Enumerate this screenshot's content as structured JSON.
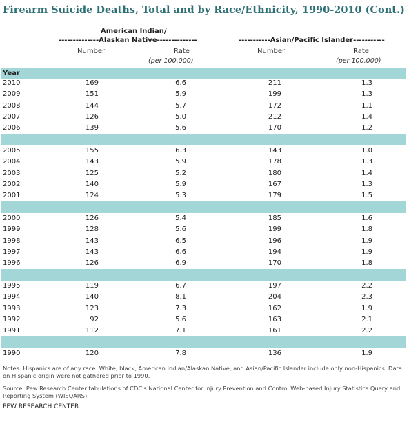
{
  "title": "Firearm Suicide Deaths, Total and by Race/Ethnicity, 1990-2010 (Cont.)",
  "groups": {
    "aian_line1": "American Indian/",
    "aian_line2": "--------------Alaskan Native--------------",
    "api_line": "-----------Asian/Pacific Islander-----------"
  },
  "columns": {
    "number": "Number",
    "rate": "Rate",
    "rate_sub": "(per 100,000)"
  },
  "year_label": "Year",
  "blocks": [
    [
      {
        "year": "2010",
        "aian_number": "169",
        "aian_rate": "6.6",
        "api_number": "211",
        "api_rate": "1.3"
      },
      {
        "year": "2009",
        "aian_number": "151",
        "aian_rate": "5.9",
        "api_number": "199",
        "api_rate": "1.3"
      },
      {
        "year": "2008",
        "aian_number": "144",
        "aian_rate": "5.7",
        "api_number": "172",
        "api_rate": "1.1"
      },
      {
        "year": "2007",
        "aian_number": "126",
        "aian_rate": "5.0",
        "api_number": "212",
        "api_rate": "1.4"
      },
      {
        "year": "2006",
        "aian_number": "139",
        "aian_rate": "5.6",
        "api_number": "170",
        "api_rate": "1.2"
      }
    ],
    [
      {
        "year": "2005",
        "aian_number": "155",
        "aian_rate": "6.3",
        "api_number": "143",
        "api_rate": "1.0"
      },
      {
        "year": "2004",
        "aian_number": "143",
        "aian_rate": "5.9",
        "api_number": "178",
        "api_rate": "1.3"
      },
      {
        "year": "2003",
        "aian_number": "125",
        "aian_rate": "5.2",
        "api_number": "180",
        "api_rate": "1.4"
      },
      {
        "year": "2002",
        "aian_number": "140",
        "aian_rate": "5.9",
        "api_number": "167",
        "api_rate": "1.3"
      },
      {
        "year": "2001",
        "aian_number": "124",
        "aian_rate": "5.3",
        "api_number": "179",
        "api_rate": "1.5"
      }
    ],
    [
      {
        "year": "2000",
        "aian_number": "126",
        "aian_rate": "5.4",
        "api_number": "185",
        "api_rate": "1.6"
      },
      {
        "year": "1999",
        "aian_number": "128",
        "aian_rate": "5.6",
        "api_number": "199",
        "api_rate": "1.8"
      },
      {
        "year": "1998",
        "aian_number": "143",
        "aian_rate": "6.5",
        "api_number": "196",
        "api_rate": "1.9"
      },
      {
        "year": "1997",
        "aian_number": "143",
        "aian_rate": "6.6",
        "api_number": "194",
        "api_rate": "1.9"
      },
      {
        "year": "1996",
        "aian_number": "126",
        "aian_rate": "6.9",
        "api_number": "170",
        "api_rate": "1.8"
      }
    ],
    [
      {
        "year": "1995",
        "aian_number": "119",
        "aian_rate": "6.7",
        "api_number": "197",
        "api_rate": "2.2"
      },
      {
        "year": "1994",
        "aian_number": "140",
        "aian_rate": "8.1",
        "api_number": "204",
        "api_rate": "2.3"
      },
      {
        "year": "1993",
        "aian_number": "123",
        "aian_rate": "7.3",
        "api_number": "162",
        "api_rate": "1.9"
      },
      {
        "year": "1992",
        "aian_number": "92",
        "aian_rate": "5.6",
        "api_number": "163",
        "api_rate": "2.1"
      },
      {
        "year": "1991",
        "aian_number": "112",
        "aian_rate": "7.1",
        "api_number": "161",
        "api_rate": "2.2"
      }
    ],
    [
      {
        "year": "1990",
        "aian_number": "120",
        "aian_rate": "7.8",
        "api_number": "136",
        "api_rate": "1.9"
      }
    ]
  ],
  "notes": "Notes: Hispanics are of any race. White, black, American Indian/Alaskan Native, and Asian/Pacific Islander include only non-Hispanics. Data on Hispanic origin were not gathered prior to 1990.",
  "source": "Source: Pew Research Center tabulations of CDC's National Center for Injury Prevention and Control Web-based Injury Statistics Query and Reporting System (WISQARS)",
  "credit": "PEW RESEARCH CENTER",
  "colors": {
    "title": "#2e6f74",
    "band": "#a3d6d6"
  }
}
